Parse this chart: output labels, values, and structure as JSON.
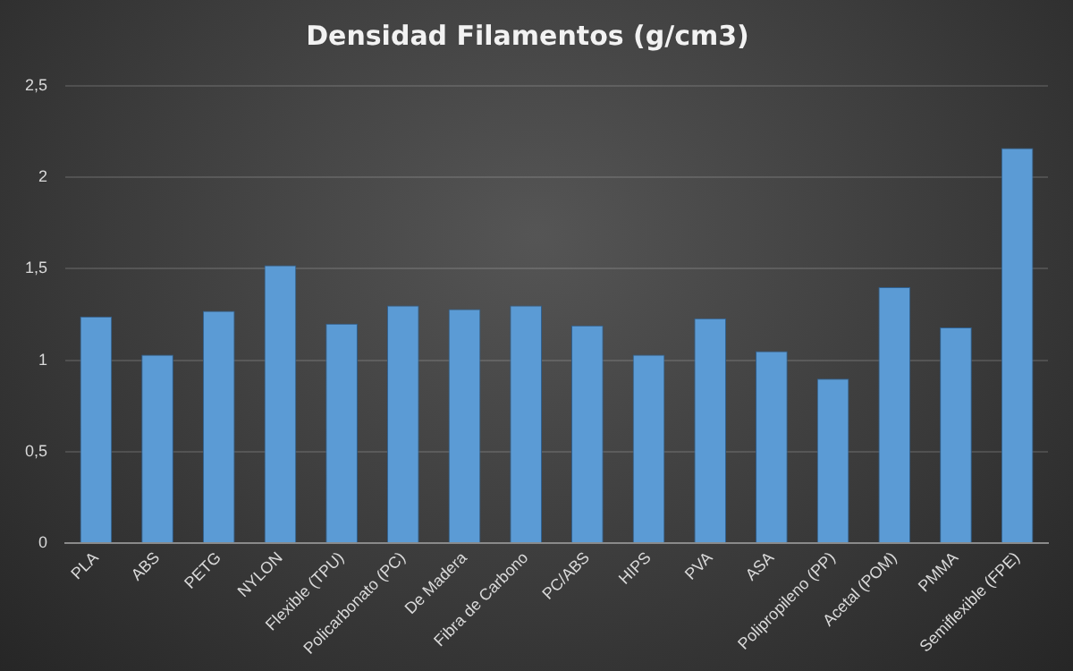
{
  "chart_data": {
    "type": "bar",
    "title": "Densidad Filamentos (g/cm3)",
    "categories": [
      "PLA",
      "ABS",
      "PETG",
      "NYLON",
      "Flexible (TPU)",
      "Policarbonato (PC)",
      "De Madera",
      "Fibra de Carbono",
      "PC/ABS",
      "HIPS",
      "PVA",
      "ASA",
      "Polipropileno (PP)",
      "Acetal (POM)",
      "PMMA",
      "Semiflexible (FPE)"
    ],
    "values": [
      1.24,
      1.03,
      1.27,
      1.52,
      1.2,
      1.3,
      1.28,
      1.3,
      1.19,
      1.03,
      1.23,
      1.05,
      0.9,
      1.4,
      1.18,
      2.16
    ],
    "color": "#5b9bd5",
    "ylim": [
      0,
      2.5
    ],
    "yticks": [
      {
        "value": 0,
        "label": "0"
      },
      {
        "value": 0.5,
        "label": "0,5"
      },
      {
        "value": 1,
        "label": "1"
      },
      {
        "value": 1.5,
        "label": "1,5"
      },
      {
        "value": 2,
        "label": "2"
      },
      {
        "value": 2.5,
        "label": "2,5"
      }
    ],
    "grid": "y"
  }
}
